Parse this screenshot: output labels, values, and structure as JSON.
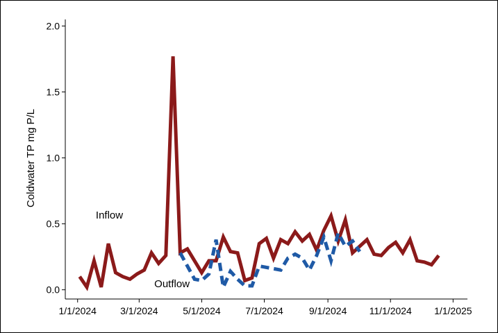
{
  "chart_data": {
    "type": "line",
    "title": "",
    "xlabel": "",
    "ylabel": "Coldwater TP mg P/L",
    "xlim": [
      "2023-12-20",
      "2025-01-15"
    ],
    "ylim": [
      -0.07,
      2.05
    ],
    "grid": false,
    "legend": "none",
    "x_ticks": [
      "2024-01-01",
      "2024-03-01",
      "2024-05-01",
      "2024-07-01",
      "2024-09-01",
      "2024-11-01",
      "2025-01-01"
    ],
    "x_tick_labels": [
      "1/1/2024",
      "3/1/2024",
      "5/1/2024",
      "7/1/2024",
      "9/1/2024",
      "11/1/2024",
      "1/1/2025"
    ],
    "y_ticks": [
      0.0,
      0.5,
      1.0,
      1.5,
      2.0
    ],
    "y_tick_labels": [
      "0.0",
      "0.5",
      "1.0",
      "1.5",
      "2.0"
    ],
    "annotations": [
      {
        "text": "Inflow",
        "x": "2024-02-01",
        "y": 0.54
      },
      {
        "text": "Outflow",
        "x": "2024-04-02",
        "y": 0.02
      }
    ],
    "series": [
      {
        "name": "Inflow",
        "color": "#8b1a1a",
        "style": "solid",
        "x": [
          "2024-01-03",
          "2024-01-10",
          "2024-01-17",
          "2024-01-24",
          "2024-01-31",
          "2024-02-07",
          "2024-02-14",
          "2024-02-21",
          "2024-02-28",
          "2024-03-06",
          "2024-03-13",
          "2024-03-20",
          "2024-03-27",
          "2024-04-03",
          "2024-04-10",
          "2024-04-17",
          "2024-04-24",
          "2024-05-01",
          "2024-05-08",
          "2024-05-15",
          "2024-05-22",
          "2024-05-29",
          "2024-06-05",
          "2024-06-12",
          "2024-06-19",
          "2024-06-26",
          "2024-07-03",
          "2024-07-10",
          "2024-07-17",
          "2024-07-24",
          "2024-07-31",
          "2024-08-07",
          "2024-08-14",
          "2024-08-21",
          "2024-08-28",
          "2024-09-04",
          "2024-09-11",
          "2024-09-18",
          "2024-09-25",
          "2024-10-02",
          "2024-10-09",
          "2024-10-16",
          "2024-10-23",
          "2024-10-30",
          "2024-11-06",
          "2024-11-13",
          "2024-11-20",
          "2024-11-27",
          "2024-12-04",
          "2024-12-11",
          "2024-12-18"
        ],
        "y": [
          0.1,
          0.02,
          0.22,
          0.02,
          0.35,
          0.13,
          0.1,
          0.08,
          0.12,
          0.15,
          0.28,
          0.2,
          0.26,
          1.77,
          0.28,
          0.31,
          0.22,
          0.13,
          0.22,
          0.22,
          0.4,
          0.29,
          0.28,
          0.07,
          0.09,
          0.35,
          0.39,
          0.24,
          0.38,
          0.35,
          0.44,
          0.37,
          0.42,
          0.3,
          0.45,
          0.56,
          0.37,
          0.53,
          0.28,
          0.33,
          0.38,
          0.27,
          0.26,
          0.32,
          0.36,
          0.28,
          0.38,
          0.22,
          0.21,
          0.19,
          0.26
        ]
      },
      {
        "name": "Outflow",
        "color": "#1f5aa6",
        "style": "dashed",
        "x": [
          "2024-04-10",
          "2024-04-17",
          "2024-04-24",
          "2024-05-01",
          "2024-05-08",
          "2024-05-15",
          "2024-05-22",
          "2024-05-29",
          "2024-06-05",
          "2024-06-12",
          "2024-06-19",
          "2024-06-26",
          "2024-07-03",
          "2024-07-10",
          "2024-07-17",
          "2024-07-24",
          "2024-07-31",
          "2024-08-07",
          "2024-08-14",
          "2024-08-21",
          "2024-08-28",
          "2024-09-04",
          "2024-09-11",
          "2024-09-18",
          "2024-09-25",
          "2024-10-02"
        ],
        "y": [
          0.28,
          0.18,
          0.08,
          0.07,
          0.12,
          0.38,
          0.02,
          0.14,
          0.08,
          0.03,
          0.03,
          0.18,
          0.17,
          0.16,
          0.15,
          0.24,
          0.27,
          0.24,
          0.15,
          0.26,
          0.4,
          0.22,
          0.43,
          0.33,
          0.37,
          0.29
        ]
      }
    ]
  }
}
